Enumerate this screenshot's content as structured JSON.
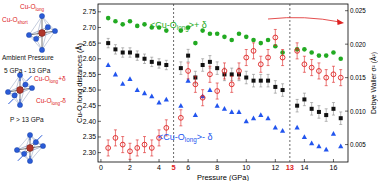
{
  "chart_data": {
    "type": "scatter",
    "x_label": "Pressure (GPa)",
    "y_label": "Cu-O long distances (Å)",
    "y2_label": "Debye Waller σ² (Å²)",
    "xlim": [
      -0.2,
      17.0
    ],
    "xticks": [
      0,
      2,
      4,
      6,
      8,
      10,
      12,
      14,
      16
    ],
    "ylim": [
      2.27,
      2.775
    ],
    "yticks": [
      {
        "value": 2.3,
        "label": "2.30"
      },
      2.35,
      {
        "value": 2.4,
        "label": "2.40"
      },
      2.45,
      {
        "value": 2.5,
        "label": "2.50"
      },
      2.55,
      {
        "value": 2.6,
        "label": "2.60"
      },
      2.65,
      {
        "value": 2.7,
        "label": "2.70"
      },
      2.75
    ],
    "y2lim": [
      0.0024,
      0.026
    ],
    "y2ticks": [
      0.005,
      {
        "value": 0.01,
        "label": "0.010"
      },
      0.015,
      {
        "value": 0.02,
        "label": "0.020"
      },
      0.025
    ],
    "x": [
      0.5,
      1,
      1.5,
      2,
      2.5,
      3,
      3.5,
      4,
      4.5,
      5.5,
      6,
      6.5,
      7,
      7.5,
      8,
      8.5,
      9,
      9.5,
      10,
      10.5,
      11,
      11.5,
      12,
      12.5,
      13.5,
      14,
      14.5,
      15,
      15.5,
      16,
      16.5
    ],
    "series": [
      {
        "color": "#22aa22",
        "marker": "circle",
        "values": [
          2.73,
          2.72,
          2.71,
          2.72,
          2.705,
          2.71,
          2.7,
          2.7,
          2.69,
          2.69,
          2.7,
          2.65,
          2.69,
          2.68,
          2.68,
          2.67,
          2.66,
          2.68,
          2.67,
          2.66,
          2.65,
          2.66,
          2.64,
          2.62,
          2.63,
          2.63,
          2.62,
          2.61,
          2.61,
          2.62,
          2.6
        ]
      },
      {
        "color": "#2255ee",
        "marker": "triangle",
        "values": [
          2.58,
          2.55,
          2.52,
          2.535,
          2.5,
          2.49,
          2.48,
          2.46,
          2.47,
          2.45,
          2.53,
          2.42,
          2.48,
          2.5,
          2.45,
          2.44,
          2.43,
          2.43,
          2.4,
          2.41,
          2.42,
          2.41,
          2.38,
          2.37,
          2.38,
          2.35,
          2.33,
          2.32,
          2.31,
          2.36,
          2.32
        ]
      },
      {
        "color": "#111111",
        "marker": "square",
        "values": [
          2.65,
          2.63,
          2.62,
          2.62,
          2.61,
          2.6,
          2.59,
          2.585,
          2.58,
          2.57,
          2.61,
          2.54,
          2.58,
          2.59,
          2.57,
          2.55,
          2.55,
          2.55,
          2.54,
          2.53,
          2.53,
          2.53,
          2.51,
          2.5,
          2.45,
          2.47,
          2.44,
          2.43,
          2.42,
          2.44,
          2.41
        ],
        "errors": [
          0.015,
          0.015,
          0.015,
          0.015,
          0.015,
          0.015,
          0.015,
          0.015,
          0.015,
          0.02,
          0.02,
          0.02,
          0.02,
          0.02,
          0.02,
          0.02,
          0.02,
          0.02,
          0.02,
          0.02,
          0.02,
          0.02,
          0.02,
          0.02,
          0.02,
          0.02,
          0.02,
          0.02,
          0.02,
          0.02,
          0.02
        ]
      },
      {
        "color": "#dd2222",
        "marker": "open_circle",
        "axis": "y2",
        "values": [
          0.0045,
          0.006,
          0.005,
          0.004,
          0.0045,
          0.005,
          0.0045,
          0.006,
          0.0075,
          0.009,
          0.016,
          0.014,
          0.012,
          0.0155,
          0.013,
          0.016,
          0.014,
          0.016,
          0.018,
          0.019,
          0.017,
          0.018,
          0.021,
          0.018,
          0.019,
          0.017,
          0.0165,
          0.016,
          0.015,
          0.0155,
          0.015
        ],
        "errors": [
          0.0012,
          0.0012,
          0.0012,
          0.0012,
          0.0012,
          0.0012,
          0.0012,
          0.0012,
          0.0012,
          0.0012,
          0.0012,
          0.0012,
          0.0012,
          0.0012,
          0.0012,
          0.0012,
          0.0012,
          0.0012,
          0.0012,
          0.0012,
          0.0012,
          0.0012,
          0.0012,
          0.0012,
          0.0012,
          0.0012,
          0.0012,
          0.0012,
          0.0012,
          0.0012,
          0.0012
        ]
      }
    ],
    "reference_lines": [
      5,
      13
    ],
    "annotations": [
      {
        "color": "#22aa22",
        "parts": [
          {
            "t": "<Cu-O"
          },
          {
            "t": "long",
            "sub": true
          },
          {
            "t": ">+ δ"
          }
        ]
      },
      {
        "color": "#2255ee",
        "parts": [
          {
            "t": "<Cu-O"
          },
          {
            "t": "long",
            "sub": true
          },
          {
            "t": ">- δ"
          }
        ]
      }
    ]
  },
  "diagram": {
    "labels": [
      {
        "color": "#dd2222",
        "parts": [
          {
            "t": "Cu-O"
          },
          {
            "t": "long",
            "sub": true
          }
        ]
      },
      {
        "color": "#dd2222",
        "parts": [
          {
            "t": "Cu-O"
          },
          {
            "t": "short",
            "sub": true
          }
        ]
      },
      {
        "color": "#111111",
        "parts": [
          {
            "t": "Ambient Pressure"
          }
        ]
      },
      {
        "color": "#111111",
        "parts": [
          {
            "t": "5 GPa - 13 GPa"
          }
        ]
      },
      {
        "color": "#dd2222",
        "parts": [
          {
            "t": "Cu-O"
          },
          {
            "t": "long",
            "sub": true
          },
          {
            "t": "+δ"
          }
        ]
      },
      {
        "color": "#dd2222",
        "parts": [
          {
            "t": "Cu-O"
          },
          {
            "t": "long",
            "sub": true
          },
          {
            "t": "-δ"
          }
        ]
      },
      {
        "color": "#111111",
        "parts": [
          {
            "t": "P > 13 GPa"
          }
        ]
      }
    ]
  }
}
